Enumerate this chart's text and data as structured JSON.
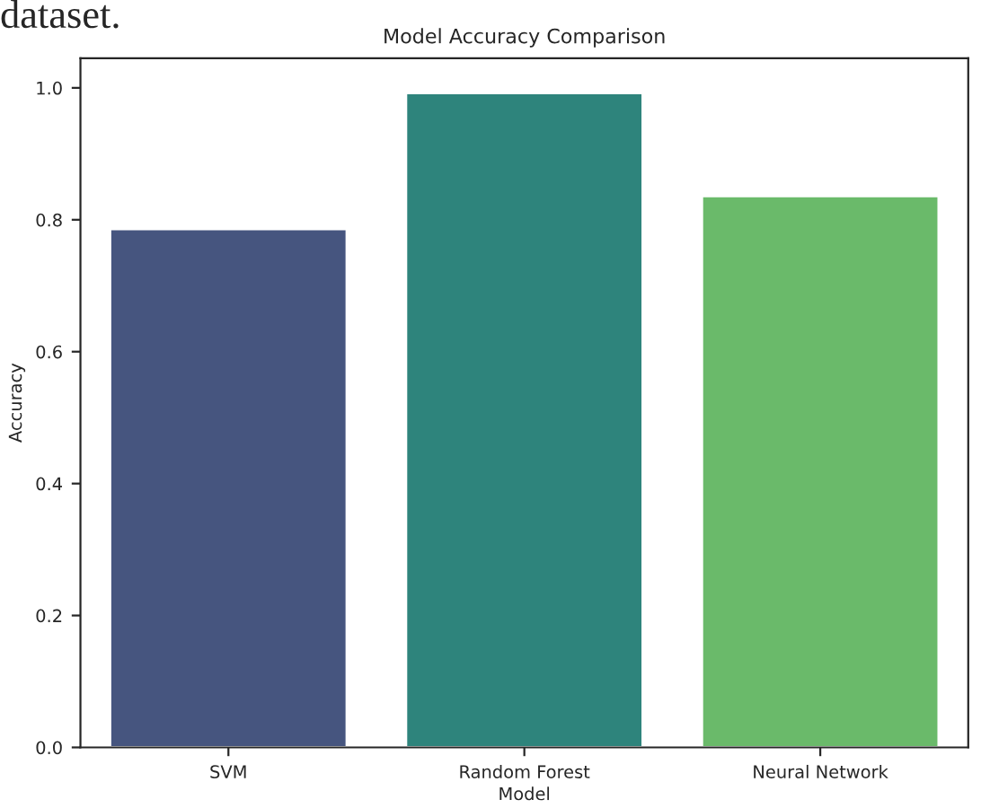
{
  "chart_data": {
    "type": "bar",
    "title": "Model Accuracy Comparison",
    "xlabel": "Model",
    "ylabel": "Accuracy",
    "categories": [
      "SVM",
      "Random Forest",
      "Neural Network"
    ],
    "values": [
      0.786,
      0.992,
      0.836
    ],
    "colors": [
      "#46557f",
      "#2e847c",
      "#6aba6a"
    ],
    "ylim": [
      0,
      1.045
    ],
    "yticks": [
      {
        "value": 0,
        "label": "0.0"
      },
      0.2,
      0.4,
      0.6,
      0.8,
      {
        "value": 1,
        "label": "1.0"
      }
    ],
    "grid": false,
    "legend": false,
    "annotations": [
      "dataset."
    ]
  }
}
